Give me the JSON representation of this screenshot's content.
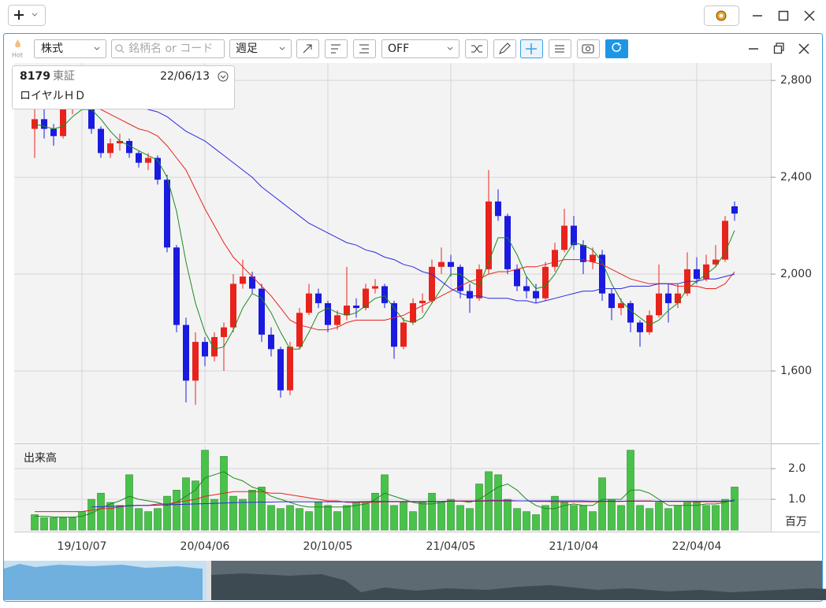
{
  "toolbar": {
    "hot": "Hot",
    "market": "株式",
    "search_placeholder": "銘柄名 or コード",
    "period": "週足",
    "indicator": "OFF"
  },
  "info": {
    "code": "8179",
    "exchange": "東証",
    "date": "22/06/13",
    "name": "ロイヤルＨＤ"
  },
  "chart_data": [
    {
      "type": "candlestick",
      "categories": [
        null,
        null,
        null,
        null,
        null,
        "19/10/07",
        null,
        null,
        null,
        null,
        null,
        null,
        null,
        null,
        null,
        null,
        null,
        null,
        "20/04/06",
        null,
        null,
        null,
        null,
        null,
        null,
        null,
        null,
        null,
        null,
        null,
        null,
        "20/10/05",
        null,
        null,
        null,
        null,
        null,
        null,
        null,
        null,
        null,
        null,
        null,
        null,
        "21/04/05",
        null,
        null,
        null,
        null,
        null,
        null,
        null,
        null,
        null,
        null,
        null,
        null,
        "21/10/04",
        null,
        null,
        null,
        null,
        null,
        null,
        null,
        null,
        null,
        null,
        null,
        null,
        "22/04/04",
        null,
        null,
        null,
        null
      ],
      "open": [
        2600,
        2640,
        2600,
        2570,
        2680,
        2770,
        2720,
        2600,
        2500,
        2540,
        2550,
        2500,
        2460,
        2480,
        2390,
        2110,
        1790,
        1560,
        1720,
        1660,
        1740,
        1780,
        1960,
        1990,
        1940,
        1750,
        1690,
        1520,
        1700,
        1840,
        1920,
        1880,
        1790,
        1830,
        1870,
        1860,
        1940,
        1950,
        1880,
        1700,
        1800,
        1880,
        1890,
        2030,
        2050,
        2030,
        1930,
        1900,
        2020,
        2300,
        2240,
        2020,
        1950,
        1930,
        1900,
        2030,
        2100,
        2200,
        2120,
        2050,
        2080,
        1920,
        1860,
        1880,
        1800,
        1760,
        1830,
        1920,
        1880,
        1920,
        2020,
        1980,
        2040,
        2060,
        2280
      ],
      "high": [
        2700,
        2680,
        2620,
        2700,
        2800,
        2810,
        2740,
        2610,
        2560,
        2580,
        2560,
        2510,
        2500,
        2490,
        2410,
        2120,
        1820,
        1760,
        1740,
        1760,
        1800,
        2000,
        2060,
        2010,
        1960,
        1780,
        1700,
        1720,
        1860,
        1960,
        1940,
        1890,
        1850,
        2030,
        1900,
        1960,
        1980,
        1960,
        1890,
        1820,
        1900,
        1920,
        2060,
        2110,
        2080,
        2040,
        1960,
        2040,
        2430,
        2350,
        2250,
        2040,
        1990,
        1960,
        2050,
        2130,
        2270,
        2240,
        2140,
        2110,
        2100,
        1940,
        1900,
        1890,
        1810,
        1850,
        2040,
        1960,
        1960,
        2090,
        2070,
        2080,
        2120,
        2240,
        2300
      ],
      "low": [
        2480,
        2560,
        2530,
        2560,
        2660,
        2700,
        2580,
        2480,
        2480,
        2510,
        2480,
        2440,
        2430,
        2370,
        2090,
        1760,
        1470,
        1460,
        1620,
        1640,
        1600,
        1760,
        1940,
        1920,
        1720,
        1660,
        1490,
        1500,
        1690,
        1830,
        1860,
        1760,
        1770,
        1810,
        1820,
        1850,
        1920,
        1860,
        1650,
        1690,
        1790,
        1840,
        1880,
        2000,
        1990,
        1900,
        1840,
        1890,
        2000,
        2220,
        2000,
        1930,
        1900,
        1880,
        1890,
        2010,
        2090,
        2100,
        2000,
        2020,
        1890,
        1810,
        1830,
        1760,
        1700,
        1750,
        1820,
        1800,
        1860,
        1910,
        1960,
        1970,
        2030,
        2050,
        2220
      ],
      "close": [
        2640,
        2600,
        2570,
        2680,
        2770,
        2720,
        2600,
        2500,
        2540,
        2550,
        2500,
        2460,
        2480,
        2390,
        2110,
        1790,
        1560,
        1720,
        1660,
        1740,
        1780,
        1960,
        1990,
        1940,
        1750,
        1690,
        1520,
        1700,
        1840,
        1920,
        1880,
        1790,
        1830,
        1870,
        1860,
        1940,
        1950,
        1880,
        1700,
        1800,
        1880,
        1890,
        2030,
        2050,
        2030,
        1930,
        1900,
        2020,
        2300,
        2240,
        2020,
        1950,
        1930,
        1900,
        2030,
        2100,
        2200,
        2120,
        2050,
        2080,
        1920,
        1860,
        1880,
        1800,
        1760,
        1830,
        1920,
        1880,
        1920,
        2020,
        1980,
        2040,
        2060,
        2220,
        2250
      ],
      "up_color": "#e8231c",
      "down_color": "#1a1ae0",
      "series": [
        {
          "color": "#1d8a1d",
          "values": [
            2620,
            2610,
            2600,
            2610,
            2650,
            2680,
            2680,
            2640,
            2590,
            2550,
            2530,
            2510,
            2490,
            2470,
            2400,
            2260,
            2050,
            1880,
            1760,
            1690,
            1700,
            1770,
            1860,
            1920,
            1900,
            1840,
            1760,
            1690,
            1690,
            1760,
            1840,
            1860,
            1840,
            1830,
            1840,
            1870,
            1900,
            1910,
            1860,
            1810,
            1800,
            1820,
            1880,
            1940,
            2000,
            2000,
            1970,
            1950,
            2050,
            2150,
            2150,
            2080,
            1990,
            1940,
            1950,
            2000,
            2070,
            2130,
            2120,
            2100,
            2050,
            1960,
            1890,
            1850,
            1820,
            1790,
            1810,
            1850,
            1880,
            1940,
            1970,
            2000,
            2030,
            2090,
            2180
          ]
        },
        {
          "color": "#e8231c",
          "values": [
            null,
            null,
            null,
            null,
            null,
            null,
            2690,
            2680,
            2660,
            2640,
            2620,
            2600,
            2590,
            2570,
            2530,
            2480,
            2430,
            2350,
            2270,
            2200,
            2130,
            2070,
            2030,
            1990,
            1950,
            1910,
            1860,
            1810,
            1790,
            1780,
            1770,
            1770,
            1780,
            1800,
            1810,
            1810,
            1810,
            1810,
            1820,
            1830,
            1850,
            1870,
            1890,
            1910,
            1930,
            1950,
            1970,
            1980,
            2000,
            2010,
            2010,
            2020,
            2030,
            2030,
            2040,
            2050,
            2060,
            2060,
            2060,
            2050,
            2040,
            2020,
            2000,
            1980,
            1970,
            1960,
            1960,
            1960,
            1950,
            1950,
            1950,
            1940,
            1940,
            1960,
            2010
          ]
        },
        {
          "color": "#2a2ae0",
          "values": [
            null,
            null,
            null,
            null,
            null,
            null,
            2720,
            2710,
            2710,
            2700,
            2700,
            2690,
            2680,
            2670,
            2650,
            2620,
            2590,
            2570,
            2550,
            2520,
            2490,
            2460,
            2430,
            2400,
            2360,
            2330,
            2300,
            2270,
            2240,
            2210,
            2190,
            2170,
            2150,
            2130,
            2120,
            2100,
            2090,
            2070,
            2060,
            2040,
            2030,
            2010,
            2000,
            1970,
            1940,
            1920,
            1910,
            1910,
            1900,
            1900,
            1900,
            1890,
            1890,
            1880,
            1890,
            1900,
            1910,
            1920,
            1930,
            1930,
            1940,
            1940,
            1940,
            1950,
            1950,
            1950,
            1960,
            1960,
            1960,
            1970,
            1970,
            1980,
            1980,
            1990,
            2000
          ]
        }
      ],
      "ylim": [
        1304,
        2872
      ],
      "yticks": [
        {
          "value": 1600,
          "label": "1,600"
        },
        {
          "value": 2000,
          "label": "2,000"
        },
        {
          "value": 2400,
          "label": "2,400"
        },
        {
          "value": 2800,
          "label": "2,800"
        }
      ],
      "grid": true
    },
    {
      "type": "bar",
      "title": "出来高",
      "ylabel": "百万",
      "color": "#49c24a",
      "values": [
        0.5,
        0.4,
        0.4,
        0.4,
        0.4,
        0.6,
        1.0,
        1.2,
        0.9,
        0.8,
        1.8,
        0.7,
        0.6,
        0.7,
        1.1,
        1.3,
        1.7,
        1.6,
        2.6,
        1.0,
        2.4,
        1.1,
        1.0,
        1.3,
        1.4,
        0.8,
        0.7,
        0.8,
        0.7,
        0.6,
        0.9,
        0.8,
        0.6,
        0.8,
        0.9,
        0.9,
        1.2,
        1.8,
        0.8,
        0.9,
        0.6,
        0.9,
        1.2,
        0.9,
        1.0,
        0.8,
        0.7,
        1.5,
        1.9,
        1.8,
        1.0,
        0.7,
        0.6,
        0.5,
        0.8,
        1.1,
        0.9,
        0.8,
        0.8,
        0.6,
        1.7,
        1.0,
        0.8,
        2.6,
        0.8,
        0.7,
        0.9,
        0.7,
        0.8,
        0.9,
        0.9,
        0.8,
        0.8,
        1.0,
        1.4
      ],
      "series": [
        {
          "color": "#1d8a1d",
          "values": [
            0.45,
            0.45,
            0.43,
            0.42,
            0.42,
            0.45,
            0.55,
            0.7,
            0.85,
            0.95,
            1.1,
            1.0,
            0.95,
            0.9,
            0.8,
            0.9,
            1.1,
            1.3,
            1.7,
            1.8,
            1.9,
            1.7,
            1.6,
            1.4,
            1.3,
            1.1,
            1.0,
            0.9,
            0.8,
            0.75,
            0.75,
            0.75,
            0.75,
            0.75,
            0.8,
            0.85,
            1.0,
            1.2,
            1.1,
            1.0,
            0.9,
            0.85,
            0.85,
            0.9,
            0.95,
            0.95,
            0.9,
            1.0,
            1.2,
            1.4,
            1.5,
            1.3,
            1.0,
            0.8,
            0.7,
            0.7,
            0.8,
            0.85,
            0.8,
            0.8,
            1.0,
            1.0,
            1.0,
            1.3,
            1.3,
            1.2,
            1.0,
            0.8,
            0.8,
            0.8,
            0.8,
            0.85,
            0.85,
            0.9,
            1.0
          ]
        },
        {
          "color": "#e8231c",
          "values": [
            0.6,
            0.6,
            0.6,
            0.6,
            0.6,
            0.6,
            0.65,
            0.7,
            0.7,
            0.75,
            0.8,
            0.8,
            0.8,
            0.85,
            0.85,
            0.9,
            0.95,
            1.0,
            1.1,
            1.15,
            1.2,
            1.25,
            1.25,
            1.25,
            1.25,
            1.2,
            1.2,
            1.15,
            1.1,
            1.05,
            1.0,
            0.95,
            0.95,
            0.9,
            0.9,
            0.9,
            0.9,
            0.92,
            0.92,
            0.92,
            0.92,
            0.92,
            0.93,
            0.93,
            0.95,
            0.95,
            0.95,
            0.95,
            0.97,
            0.97,
            0.97,
            0.95,
            0.95,
            0.93,
            0.93,
            0.92,
            0.92,
            0.92,
            0.92,
            0.92,
            0.93,
            0.93,
            0.93,
            0.95,
            0.95,
            0.95,
            0.93,
            0.93,
            0.93,
            0.93,
            0.92,
            0.92,
            0.92,
            0.93,
            0.95
          ]
        },
        {
          "color": "#2a2ae0",
          "values": [
            null,
            null,
            null,
            null,
            null,
            null,
            0.75,
            0.76,
            0.77,
            0.78,
            0.79,
            0.8,
            0.8,
            0.81,
            0.82,
            0.83,
            0.84,
            0.85,
            0.86,
            0.87,
            0.88,
            0.89,
            0.9,
            0.9,
            0.91,
            0.91,
            0.92,
            0.92,
            0.92,
            0.92,
            0.92,
            0.92,
            0.92,
            0.92,
            0.92,
            0.93,
            0.93,
            0.93,
            0.93,
            0.93,
            0.93,
            0.93,
            0.93,
            0.93,
            0.94,
            0.94,
            0.94,
            0.94,
            0.95,
            0.95,
            0.95,
            0.95,
            0.95,
            0.95,
            0.95,
            0.95,
            0.95,
            0.95,
            0.95,
            0.94,
            0.94,
            0.94,
            0.94,
            0.94,
            0.94,
            0.94,
            0.94,
            0.94,
            0.94,
            0.94,
            0.94,
            0.94,
            0.94,
            0.94,
            0.95
          ]
        }
      ],
      "ylim": [
        0,
        2.77
      ],
      "yticks": [
        {
          "value": 1,
          "label": "1.0"
        },
        {
          "value": 2,
          "label": "2.0"
        }
      ],
      "grid": true
    }
  ]
}
